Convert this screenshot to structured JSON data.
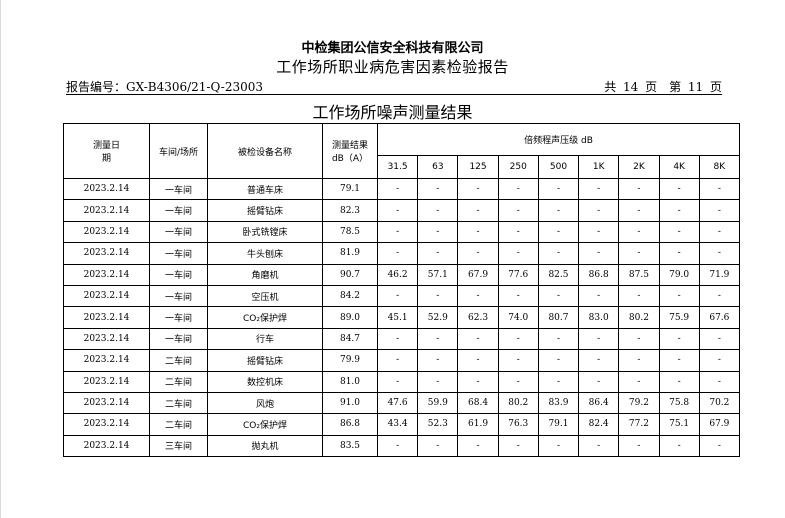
{
  "header": {
    "company": "中检集团公信安全科技有限公司",
    "report_title": "工作场所职业病危害因素检验报告",
    "report_no": "报告编号：GX-B4306/21-Q-23003",
    "pages": "共 14 页　第 11 页"
  },
  "table": {
    "title": "工作场所噪声测量结果",
    "columns": {
      "date": "测量日期",
      "location": "车间/场所",
      "equipment": "被检设备名称",
      "result": "测量结果dB（A）",
      "octave": "倍频程声压级 dB"
    },
    "bands": [
      "31.5",
      "63",
      "125",
      "250",
      "500",
      "1K",
      "2K",
      "4K",
      "8K"
    ],
    "rows": [
      {
        "date": "2023.2.14",
        "location": "一车间",
        "equipment": "普通车床",
        "result": "79.1",
        "bands": [
          "-",
          "-",
          "-",
          "-",
          "-",
          "-",
          "-",
          "-",
          "-"
        ]
      },
      {
        "date": "2023.2.14",
        "location": "一车间",
        "equipment": "摇臂钻床",
        "result": "82.3",
        "bands": [
          "-",
          "-",
          "-",
          "-",
          "-",
          "-",
          "-",
          "-",
          "-"
        ]
      },
      {
        "date": "2023.2.14",
        "location": "一车间",
        "equipment": "卧式铣镗床",
        "result": "78.5",
        "bands": [
          "-",
          "-",
          "-",
          "-",
          "-",
          "-",
          "-",
          "-",
          "-"
        ]
      },
      {
        "date": "2023.2.14",
        "location": "一车间",
        "equipment": "牛头刨床",
        "result": "81.9",
        "bands": [
          "-",
          "-",
          "-",
          "-",
          "-",
          "-",
          "-",
          "-",
          "-"
        ]
      },
      {
        "date": "2023.2.14",
        "location": "一车间",
        "equipment": "角磨机",
        "result": "90.7",
        "bands": [
          "46.2",
          "57.1",
          "67.9",
          "77.6",
          "82.5",
          "86.8",
          "87.5",
          "79.0",
          "71.9"
        ]
      },
      {
        "date": "2023.2.14",
        "location": "一车间",
        "equipment": "空压机",
        "result": "84.2",
        "bands": [
          "-",
          "-",
          "-",
          "-",
          "-",
          "-",
          "-",
          "-",
          "-"
        ]
      },
      {
        "date": "2023.2.14",
        "location": "一车间",
        "equipment": "CO₂保护焊",
        "result": "89.0",
        "bands": [
          "45.1",
          "52.9",
          "62.3",
          "74.0",
          "80.7",
          "83.0",
          "80.2",
          "75.9",
          "67.6"
        ]
      },
      {
        "date": "2023.2.14",
        "location": "一车间",
        "equipment": "行车",
        "result": "84.7",
        "bands": [
          "-",
          "-",
          "-",
          "-",
          "-",
          "-",
          "-",
          "-",
          "-"
        ]
      },
      {
        "date": "2023.2.14",
        "location": "二车间",
        "equipment": "摇臂钻床",
        "result": "79.9",
        "bands": [
          "-",
          "-",
          "-",
          "-",
          "-",
          "-",
          "-",
          "-",
          "-"
        ]
      },
      {
        "date": "2023.2.14",
        "location": "二车间",
        "equipment": "数控机床",
        "result": "81.0",
        "bands": [
          "-",
          "-",
          "-",
          "-",
          "-",
          "-",
          "-",
          "-",
          "-"
        ]
      },
      {
        "date": "2023.2.14",
        "location": "二车间",
        "equipment": "风炮",
        "result": "91.0",
        "bands": [
          "47.6",
          "59.9",
          "68.4",
          "80.2",
          "83.9",
          "86.4",
          "79.2",
          "75.8",
          "70.2"
        ]
      },
      {
        "date": "2023.2.14",
        "location": "二车间",
        "equipment": "CO₂保护焊",
        "result": "86.8",
        "bands": [
          "43.4",
          "52.3",
          "61.9",
          "76.3",
          "79.1",
          "82.4",
          "77.2",
          "75.1",
          "67.9"
        ]
      },
      {
        "date": "2023.2.14",
        "location": "三车间",
        "equipment": "抛丸机",
        "result": "83.5",
        "bands": [
          "-",
          "-",
          "-",
          "-",
          "-",
          "-",
          "-",
          "-",
          "-"
        ]
      }
    ]
  }
}
